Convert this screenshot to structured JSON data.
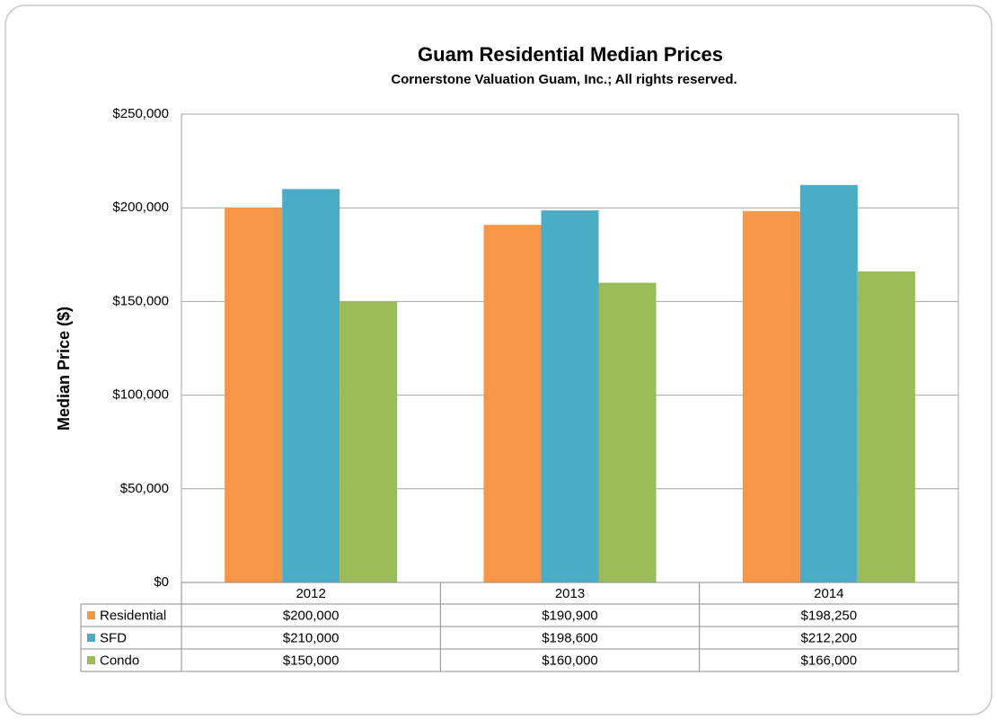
{
  "chart_data": {
    "type": "bar",
    "title": "Guam Residential Median Prices",
    "subtitle": "Cornerstone Valuation Guam, Inc.; All rights reserved.",
    "y_label": "Median Price ($)",
    "categories": [
      "2012",
      "2013",
      "2014"
    ],
    "series": [
      {
        "name": "Residential",
        "color": "#f79646",
        "values": [
          200000,
          190900,
          198250
        ],
        "value_labels": [
          "$200,000",
          "$190,900",
          "$198,250"
        ]
      },
      {
        "name": "SFD",
        "color": "#4bacc6",
        "values": [
          210000,
          198600,
          212200
        ],
        "value_labels": [
          "$210,000",
          "$198,600",
          "$212,200"
        ]
      },
      {
        "name": "Condo",
        "color": "#9bbb59",
        "values": [
          150000,
          160000,
          166000
        ],
        "value_labels": [
          "$150,000",
          "$160,000",
          "$166,000"
        ]
      }
    ],
    "ylim": [
      0,
      250000
    ],
    "yticks": [
      {
        "value": 0,
        "label": "$0"
      },
      {
        "value": 50000,
        "label": "$50,000"
      },
      {
        "value": 100000,
        "label": "$100,000"
      },
      {
        "value": 150000,
        "label": "$150,000"
      },
      {
        "value": 200000,
        "label": "$200,000"
      },
      {
        "value": 250000,
        "label": "$250,000"
      }
    ],
    "grid": true
  }
}
